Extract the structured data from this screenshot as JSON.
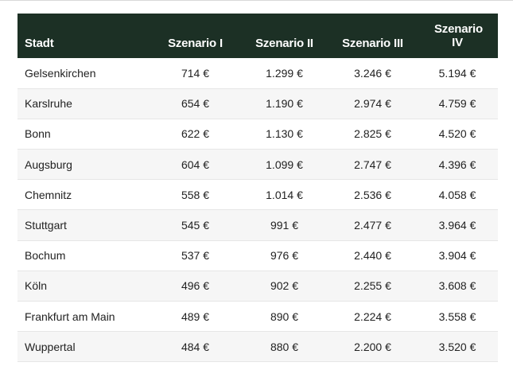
{
  "table": {
    "headers": [
      "Stadt",
      "Szenario I",
      "Szenario II",
      "Szenario III",
      "Szenario IV"
    ],
    "rows": [
      [
        "Gelsenkirchen",
        "714 €",
        "1.299 €",
        "3.246 €",
        "5.194 €"
      ],
      [
        "Karslruhe",
        "654 €",
        "1.190 €",
        "2.974 €",
        "4.759 €"
      ],
      [
        "Bonn",
        "622 €",
        "1.130 €",
        "2.825 €",
        "4.520 €"
      ],
      [
        "Augsburg",
        "604 €",
        "1.099 €",
        "2.747 €",
        "4.396 €"
      ],
      [
        "Chemnitz",
        "558 €",
        "1.014 €",
        "2.536 €",
        "4.058 €"
      ],
      [
        "Stuttgart",
        "545 €",
        "991 €",
        "2.477 €",
        "3.964 €"
      ],
      [
        "Bochum",
        "537 €",
        "976 €",
        "2.440 €",
        "3.904 €"
      ],
      [
        "Köln",
        "496 €",
        "902 €",
        "2.255 €",
        "3.608 €"
      ],
      [
        "Frankfurt am Main",
        "489 €",
        "890 €",
        "2.224 €",
        "3.558 €"
      ],
      [
        "Wuppertal",
        "484 €",
        "880 €",
        "2.200 €",
        "3.520 €"
      ]
    ]
  },
  "colors": {
    "header_bg": "#1c3025",
    "header_text": "#ffffff",
    "row_alt_bg": "#f6f6f6",
    "row_bg": "#ffffff",
    "text": "#222222"
  }
}
